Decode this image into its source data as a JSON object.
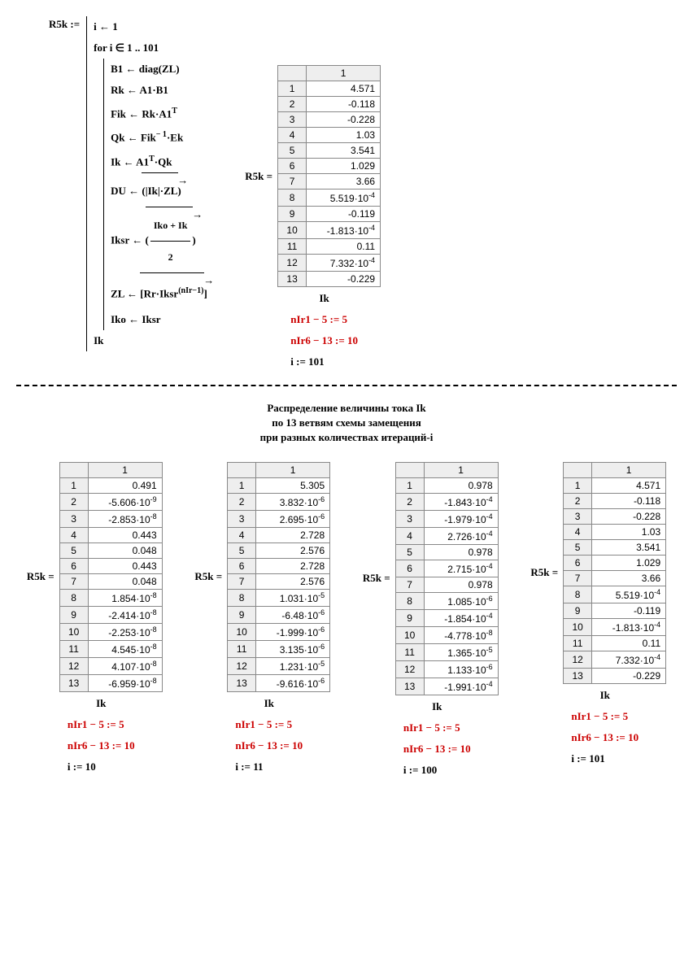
{
  "top": {
    "lhs": "R5k :=",
    "body": {
      "l1": "i ← 1",
      "l2_a": "for  i ∈ 1 .. ",
      "l2_b": "101",
      "l3": "B1 ← diag(ZL)",
      "l4": "Rk ← A1·B1",
      "l5_a": "Fik ← Rk·A1",
      "l5_sup": "T",
      "l6_a": "Qk ← Fik",
      "l6_sup": "− 1",
      "l6_b": "·Ek",
      "l7_a": "Ik ← A1",
      "l7_sup": "T",
      "l7_b": "·Qk",
      "l8_a": "DU ← ",
      "l8_ov": "(|Ik|·ZL)",
      "l9_a": "Iksr ← ",
      "l9_num": "Iko + Ik",
      "l9_den": "2",
      "l10_a": "ZL ← ",
      "l10_ov_a": "Rr·Iksr",
      "l10_sup": "(nIr−1)",
      "l11": "Iko ← Iksr",
      "l12": "Ik"
    },
    "result_label": "R5k =",
    "table": {
      "header": "1",
      "rows": [
        {
          "i": "1",
          "v": "4.571"
        },
        {
          "i": "2",
          "v": "-0.118"
        },
        {
          "i": "3",
          "v": "-0.228"
        },
        {
          "i": "4",
          "v": "1.03"
        },
        {
          "i": "5",
          "v": "3.541"
        },
        {
          "i": "6",
          "v": "1.029"
        },
        {
          "i": "7",
          "v": "3.66"
        },
        {
          "i": "8",
          "v": "5.519·10⁻⁴"
        },
        {
          "i": "9",
          "v": "-0.119"
        },
        {
          "i": "10",
          "v": "-1.813·10⁻⁴"
        },
        {
          "i": "11",
          "v": "0.11"
        },
        {
          "i": "12",
          "v": "7.332·10⁻⁴"
        },
        {
          "i": "13",
          "v": "-0.229"
        }
      ]
    },
    "below": {
      "ik": "Ik",
      "e1": "nIr1 − 5 := 5",
      "e2": "nIr6 − 13 := 10",
      "e3": "i := 101"
    }
  },
  "title": {
    "l1": "Распределение величины тока Ik",
    "l2": "по 13 ветвям схемы замещения",
    "l3": "при разных количествах итераций-i"
  },
  "bottom": {
    "label": "R5k =",
    "header": "1",
    "ik": "Ik",
    "e1": "nIr1 − 5 := 5",
    "e2": "nIr6 − 13 := 10",
    "cols": [
      {
        "i_expr": "i := 10",
        "rows": [
          {
            "i": "1",
            "v": "0.491"
          },
          {
            "i": "2",
            "v": "-5.606·10⁻⁹"
          },
          {
            "i": "3",
            "v": "-2.853·10⁻⁸"
          },
          {
            "i": "4",
            "v": "0.443"
          },
          {
            "i": "5",
            "v": "0.048"
          },
          {
            "i": "6",
            "v": "0.443"
          },
          {
            "i": "7",
            "v": "0.048"
          },
          {
            "i": "8",
            "v": "1.854·10⁻⁸"
          },
          {
            "i": "9",
            "v": "-2.414·10⁻⁸"
          },
          {
            "i": "10",
            "v": "-2.253·10⁻⁸"
          },
          {
            "i": "11",
            "v": "4.545·10⁻⁸"
          },
          {
            "i": "12",
            "v": "4.107·10⁻⁸"
          },
          {
            "i": "13",
            "v": "-6.959·10⁻⁸"
          }
        ]
      },
      {
        "i_expr": "i := 11",
        "rows": [
          {
            "i": "1",
            "v": "5.305"
          },
          {
            "i": "2",
            "v": "3.832·10⁻⁶"
          },
          {
            "i": "3",
            "v": "2.695·10⁻⁶"
          },
          {
            "i": "4",
            "v": "2.728"
          },
          {
            "i": "5",
            "v": "2.576"
          },
          {
            "i": "6",
            "v": "2.728"
          },
          {
            "i": "7",
            "v": "2.576"
          },
          {
            "i": "8",
            "v": "1.031·10⁻⁵"
          },
          {
            "i": "9",
            "v": "-6.48·10⁻⁶"
          },
          {
            "i": "10",
            "v": "-1.999·10⁻⁶"
          },
          {
            "i": "11",
            "v": "3.135·10⁻⁶"
          },
          {
            "i": "12",
            "v": "1.231·10⁻⁵"
          },
          {
            "i": "13",
            "v": "-9.616·10⁻⁶"
          }
        ]
      },
      {
        "i_expr": "i := 100",
        "rows": [
          {
            "i": "1",
            "v": "0.978"
          },
          {
            "i": "2",
            "v": "-1.843·10⁻⁴"
          },
          {
            "i": "3",
            "v": "-1.979·10⁻⁴"
          },
          {
            "i": "4",
            "v": "2.726·10⁻⁴"
          },
          {
            "i": "5",
            "v": "0.978"
          },
          {
            "i": "6",
            "v": "2.715·10⁻⁴"
          },
          {
            "i": "7",
            "v": "0.978"
          },
          {
            "i": "8",
            "v": "1.085·10⁻⁶"
          },
          {
            "i": "9",
            "v": "-1.854·10⁻⁴"
          },
          {
            "i": "10",
            "v": "-4.778·10⁻⁸"
          },
          {
            "i": "11",
            "v": "1.365·10⁻⁵"
          },
          {
            "i": "12",
            "v": "1.133·10⁻⁶"
          },
          {
            "i": "13",
            "v": "-1.991·10⁻⁴"
          }
        ]
      },
      {
        "i_expr": "i := 101",
        "rows": [
          {
            "i": "1",
            "v": "4.571"
          },
          {
            "i": "2",
            "v": "-0.118"
          },
          {
            "i": "3",
            "v": "-0.228"
          },
          {
            "i": "4",
            "v": "1.03"
          },
          {
            "i": "5",
            "v": "3.541"
          },
          {
            "i": "6",
            "v": "1.029"
          },
          {
            "i": "7",
            "v": "3.66"
          },
          {
            "i": "8",
            "v": "5.519·10⁻⁴"
          },
          {
            "i": "9",
            "v": "-0.119"
          },
          {
            "i": "10",
            "v": "-1.813·10⁻⁴"
          },
          {
            "i": "11",
            "v": "0.11"
          },
          {
            "i": "12",
            "v": "7.332·10⁻⁴"
          },
          {
            "i": "13",
            "v": "-0.229"
          }
        ]
      }
    ]
  }
}
